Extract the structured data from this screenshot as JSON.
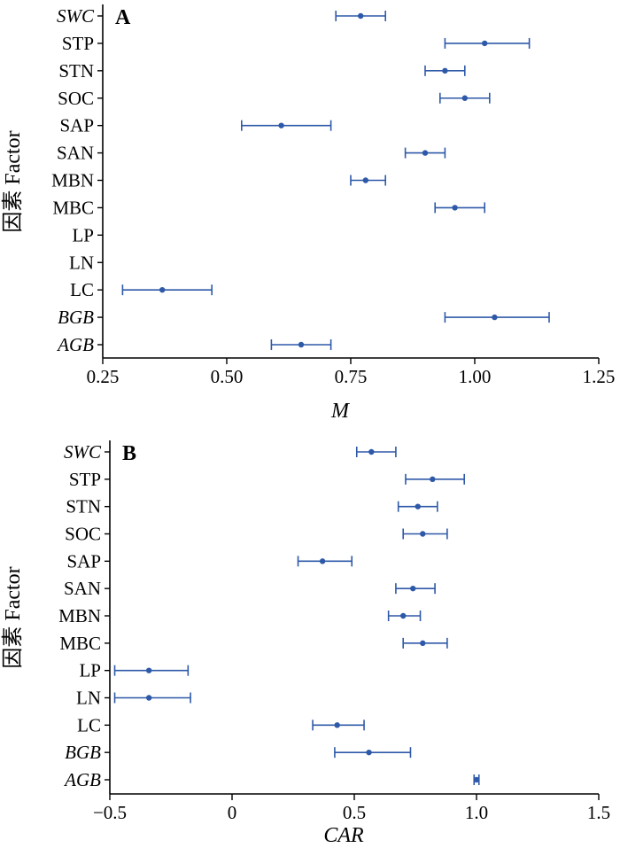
{
  "colors": {
    "marker": "#2e59a8",
    "axis": "#000000"
  },
  "chart_data": [
    {
      "type": "scatter",
      "panel_label": "A",
      "xlabel": "M",
      "ylabel": "因素 Factor",
      "xlim": [
        0.25,
        1.25
      ],
      "xticks": [
        "0.25",
        "0.50",
        "0.75",
        "1.00",
        "1.25"
      ],
      "xtick_values": [
        0.25,
        0.5,
        0.75,
        1.0,
        1.25
      ],
      "categories": [
        "SWC",
        "STP",
        "STN",
        "SOC",
        "SAP",
        "SAN",
        "MBN",
        "MBC",
        "LP",
        "LN",
        "LC",
        "BGB",
        "AGB"
      ],
      "italic_categories": [
        "SWC",
        "BGB",
        "AGB"
      ],
      "points": [
        {
          "category": "SWC",
          "value": 0.77,
          "ci_low": 0.72,
          "ci_high": 0.82
        },
        {
          "category": "STP",
          "value": 1.02,
          "ci_low": 0.94,
          "ci_high": 1.11
        },
        {
          "category": "STN",
          "value": 0.94,
          "ci_low": 0.9,
          "ci_high": 0.98
        },
        {
          "category": "SOC",
          "value": 0.98,
          "ci_low": 0.93,
          "ci_high": 1.03
        },
        {
          "category": "SAP",
          "value": 0.61,
          "ci_low": 0.53,
          "ci_high": 0.71
        },
        {
          "category": "SAN",
          "value": 0.9,
          "ci_low": 0.86,
          "ci_high": 0.94
        },
        {
          "category": "MBN",
          "value": 0.78,
          "ci_low": 0.75,
          "ci_high": 0.82
        },
        {
          "category": "MBC",
          "value": 0.96,
          "ci_low": 0.92,
          "ci_high": 1.02
        },
        {
          "category": "LP",
          "value": null,
          "ci_low": null,
          "ci_high": null
        },
        {
          "category": "LN",
          "value": null,
          "ci_low": null,
          "ci_high": null
        },
        {
          "category": "LC",
          "value": 0.37,
          "ci_low": 0.29,
          "ci_high": 0.47
        },
        {
          "category": "BGB",
          "value": 1.04,
          "ci_low": 0.94,
          "ci_high": 1.15
        },
        {
          "category": "AGB",
          "value": 0.65,
          "ci_low": 0.59,
          "ci_high": 0.71
        }
      ]
    },
    {
      "type": "scatter",
      "panel_label": "B",
      "xlabel": "CAR",
      "ylabel": "因素 Factor",
      "xlim": [
        -0.5,
        1.5
      ],
      "xticks": [
        "−0.5",
        "0",
        "0.5",
        "1.0",
        "1.5"
      ],
      "xtick_values": [
        -0.5,
        0,
        0.5,
        1.0,
        1.5
      ],
      "categories": [
        "SWC",
        "STP",
        "STN",
        "SOC",
        "SAP",
        "SAN",
        "MBN",
        "MBC",
        "LP",
        "LN",
        "LC",
        "BGB",
        "AGB"
      ],
      "italic_categories": [
        "SWC",
        "BGB",
        "AGB"
      ],
      "points": [
        {
          "category": "SWC",
          "value": 0.57,
          "ci_low": 0.51,
          "ci_high": 0.67
        },
        {
          "category": "STP",
          "value": 0.82,
          "ci_low": 0.71,
          "ci_high": 0.95
        },
        {
          "category": "STN",
          "value": 0.76,
          "ci_low": 0.68,
          "ci_high": 0.84
        },
        {
          "category": "SOC",
          "value": 0.78,
          "ci_low": 0.7,
          "ci_high": 0.88
        },
        {
          "category": "SAP",
          "value": 0.37,
          "ci_low": 0.27,
          "ci_high": 0.49
        },
        {
          "category": "SAN",
          "value": 0.74,
          "ci_low": 0.67,
          "ci_high": 0.83
        },
        {
          "category": "MBN",
          "value": 0.7,
          "ci_low": 0.64,
          "ci_high": 0.77
        },
        {
          "category": "MBC",
          "value": 0.78,
          "ci_low": 0.7,
          "ci_high": 0.88
        },
        {
          "category": "LP",
          "value": -0.34,
          "ci_low": -0.48,
          "ci_high": -0.18
        },
        {
          "category": "LN",
          "value": -0.34,
          "ci_low": -0.48,
          "ci_high": -0.17
        },
        {
          "category": "LC",
          "value": 0.43,
          "ci_low": 0.33,
          "ci_high": 0.54
        },
        {
          "category": "BGB",
          "value": 0.56,
          "ci_low": 0.42,
          "ci_high": 0.73
        },
        {
          "category": "AGB",
          "value": 1.0,
          "ci_low": 0.99,
          "ci_high": 1.01
        }
      ]
    }
  ]
}
